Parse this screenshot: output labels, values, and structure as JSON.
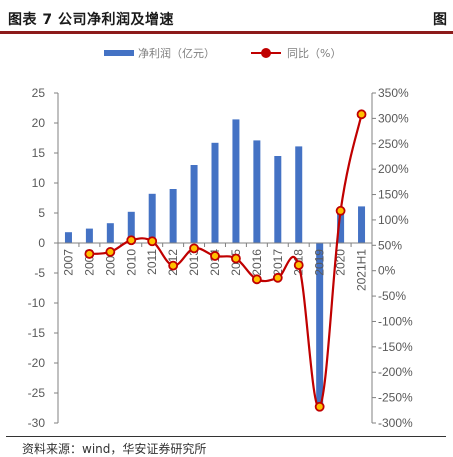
{
  "header": {
    "title": "图表 7 公司净利润及增速",
    "right_label": "图"
  },
  "legend": {
    "bar_label": "净利润（亿元）",
    "line_label": "同比（%）"
  },
  "footer": {
    "source": "资料来源：wind，华安证券研究所"
  },
  "colors": {
    "bar": "#4472c4",
    "line": "#c00000",
    "marker_fill": "#ffc000",
    "axis": "#808080",
    "header_rule": "#8c1a1a"
  },
  "chart_data": {
    "type": "bar",
    "categories": [
      "2007",
      "2008",
      "2009",
      "2010",
      "2011",
      "2012",
      "2013",
      "2014",
      "2015",
      "2016",
      "2017",
      "2018",
      "2019",
      "2020",
      "2021H1"
    ],
    "series": [
      {
        "name": "净利润（亿元）",
        "type": "bar",
        "axis": "left",
        "values": [
          1.8,
          2.4,
          3.3,
          5.2,
          8.2,
          9.0,
          13.0,
          16.7,
          20.6,
          17.1,
          14.5,
          16.1,
          -27.0,
          5.0,
          6.1
        ]
      },
      {
        "name": "同比（%）",
        "type": "line",
        "axis": "right",
        "values": [
          null,
          33,
          37,
          60,
          58,
          10,
          44,
          29,
          24,
          -17,
          -14,
          11,
          -268,
          118,
          308
        ]
      }
    ],
    "left_axis": {
      "min": -30,
      "max": 25,
      "step": 5
    },
    "right_axis": {
      "min": -300,
      "max": 350,
      "step": 50,
      "tick_labels": [
        "350%",
        "300%",
        "250%",
        "200%",
        "150%",
        "100%",
        "50%",
        "0%",
        "-50%",
        "-100%",
        "-150%",
        "-200%",
        "-250%",
        "-300%"
      ]
    },
    "left_tick_labels": [
      "25",
      "20",
      "15",
      "10",
      "5",
      "0",
      "-5",
      "-10",
      "-15",
      "-20",
      "-25",
      "-30"
    ],
    "grid": false,
    "legend_position": "top"
  }
}
